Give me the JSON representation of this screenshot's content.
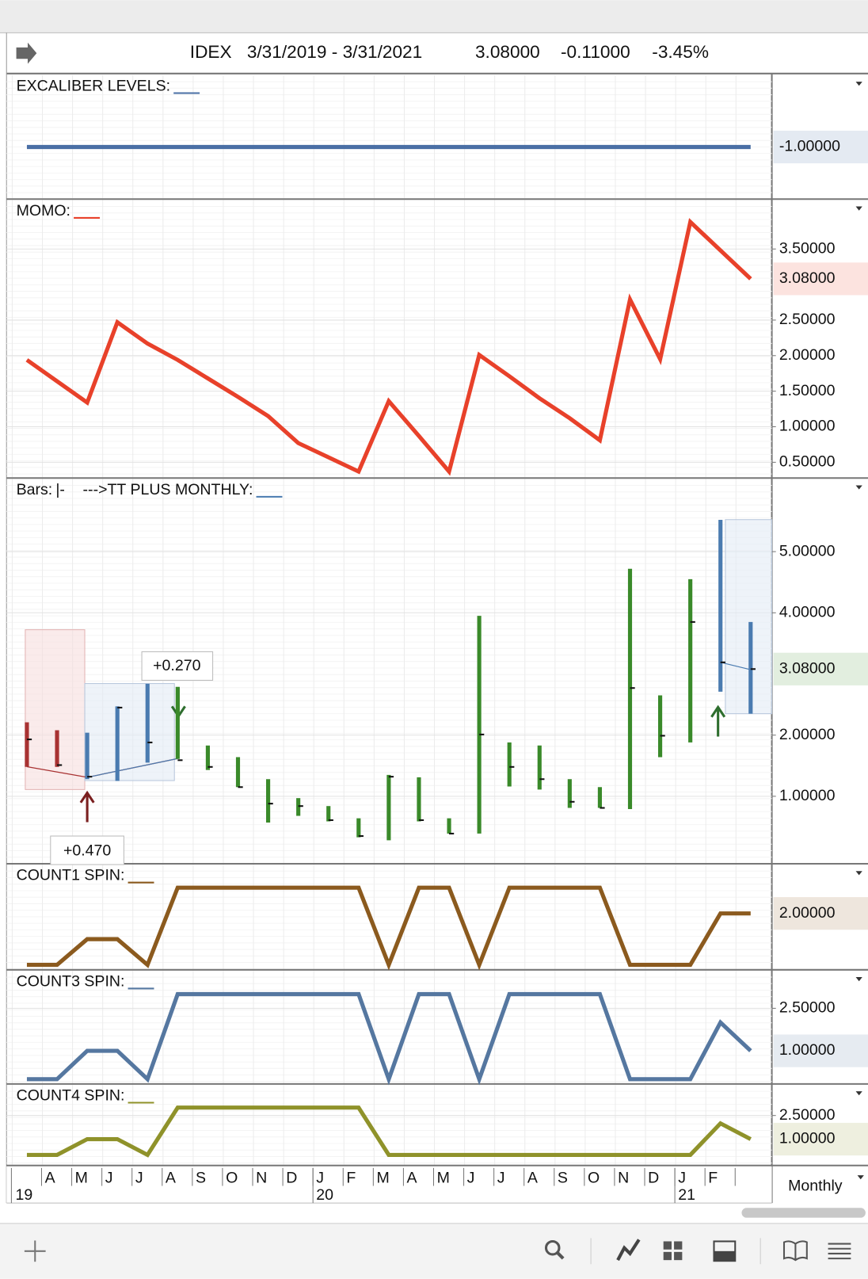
{
  "header": {
    "symbol": "IDEX",
    "range": "3/31/2019 - 3/31/2021",
    "last": "3.08000",
    "change": "-0.11000",
    "change_pct": "-3.45%"
  },
  "x_axis": {
    "categories": [
      null,
      "A",
      "M",
      "J",
      "J",
      "A",
      "S",
      "O",
      "N",
      "D",
      "J",
      "F",
      "M",
      "A",
      "M",
      "J",
      "J",
      "A",
      "S",
      "O",
      "N",
      "D",
      "J",
      "F",
      null
    ],
    "years": [
      "19",
      null,
      null,
      null,
      null,
      null,
      null,
      null,
      null,
      null,
      "20",
      null,
      null,
      null,
      null,
      null,
      null,
      null,
      null,
      null,
      null,
      null,
      "21",
      null,
      null
    ]
  },
  "period": "Monthly",
  "chart_data": [
    {
      "type": "line",
      "title": "EXCALIBER LEVELS:",
      "color": "#4a6fa5",
      "values": [
        -1,
        -1,
        -1,
        -1,
        -1,
        -1,
        -1,
        -1,
        -1,
        -1,
        -1,
        -1,
        -1,
        -1,
        -1,
        -1,
        -1,
        -1,
        -1,
        -1,
        -1,
        -1,
        -1,
        -1,
        -1
      ],
      "ylim": [
        -1.5,
        -0.3
      ],
      "yticks": [],
      "last_value_label": "-1.00000"
    },
    {
      "type": "line",
      "title": "MOMO:",
      "color": "#e8412a",
      "values": [
        1.94,
        1.64,
        1.34,
        2.47,
        2.17,
        1.94,
        1.68,
        1.42,
        1.15,
        0.77,
        0.57,
        0.37,
        1.36,
        0.87,
        0.37,
        2.01,
        1.71,
        1.4,
        1.12,
        0.81,
        2.79,
        1.95,
        3.88,
        3.48,
        3.08
      ],
      "ylim": [
        0.29,
        4.19
      ],
      "yticks": [
        {
          "value": 0.5,
          "label": "0.50000"
        },
        {
          "value": 1,
          "label": "1.00000"
        },
        {
          "value": 1.5,
          "label": "1.50000"
        },
        {
          "value": 2,
          "label": "2.00000"
        },
        {
          "value": 2.5,
          "label": "2.50000"
        },
        {
          "value": 3.5,
          "label": "3.50000"
        }
      ],
      "last_value_label": "3.08000"
    },
    {
      "type": "ohlc",
      "title": "Bars:",
      "style_label": "|-",
      "study": "--->TT PLUS MONTHLY:",
      "color": "#3a8a2a",
      "study_color": "#4a7bb0",
      "high": [
        2.21,
        2.08,
        2.04,
        2.47,
        2.84,
        2.79,
        1.83,
        1.64,
        1.28,
        0.97,
        0.84,
        0.64,
        1.35,
        1.31,
        0.64,
        3.95,
        1.88,
        1.83,
        1.28,
        1.15,
        4.72,
        2.65,
        4.55,
        5.52,
        3.85
      ],
      "low": [
        1.48,
        1.48,
        1.28,
        1.25,
        1.55,
        1.61,
        1.43,
        1.15,
        0.57,
        0.68,
        0.59,
        0.33,
        0.28,
        0.59,
        0.39,
        0.39,
        1.16,
        1.11,
        0.81,
        0.81,
        0.79,
        1.64,
        1.88,
        2.71,
        2.35
      ],
      "close": [
        1.93,
        1.51,
        1.32,
        2.45,
        1.88,
        1.59,
        1.48,
        1.15,
        0.88,
        0.84,
        0.61,
        0.35,
        1.32,
        0.61,
        0.39,
        2.01,
        1.48,
        1.28,
        0.91,
        0.81,
        2.77,
        1.99,
        3.85,
        3.19,
        3.08
      ],
      "colors": [
        "#a83232",
        "#a83232",
        "#4a7bb0",
        "#4a7bb0",
        "#4a7bb0",
        "#3a8a2a",
        "#3a8a2a",
        "#3a8a2a",
        "#3a8a2a",
        "#3a8a2a",
        "#3a8a2a",
        "#3a8a2a",
        "#3a8a2a",
        "#3a8a2a",
        "#3a8a2a",
        "#3a8a2a",
        "#3a8a2a",
        "#3a8a2a",
        "#3a8a2a",
        "#3a8a2a",
        "#3a8a2a",
        "#3a8a2a",
        "#3a8a2a",
        "#4a7bb0",
        "#4a7bb0"
      ],
      "ylim": [
        -0.09,
        6.19
      ],
      "yticks": [
        {
          "value": 1,
          "label": "1.00000"
        },
        {
          "value": 2,
          "label": "2.00000"
        },
        {
          "value": 4,
          "label": "4.00000"
        },
        {
          "value": 5,
          "label": "5.00000"
        }
      ],
      "annotations": [
        "+0.470",
        "+0.270"
      ],
      "last_value_label": "3.08000"
    },
    {
      "type": "line",
      "title": "COUNT1 SPIN:",
      "color": "#8b5a1e",
      "values": [
        0,
        0,
        1,
        1,
        0,
        3,
        3,
        3,
        3,
        3,
        3,
        3,
        0,
        3,
        3,
        0,
        3,
        3,
        3,
        3,
        0,
        0,
        0,
        2,
        2
      ],
      "ylim": [
        -0.16,
        3.9
      ],
      "yticks": [],
      "last_value_label": "2.00000"
    },
    {
      "type": "line",
      "title": "COUNT3 SPIN:",
      "color": "#5577a0",
      "values": [
        0,
        0,
        1,
        1,
        0,
        3,
        3,
        3,
        3,
        3,
        3,
        3,
        0,
        3,
        3,
        0,
        3,
        3,
        3,
        3,
        0,
        0,
        0,
        2,
        1
      ],
      "ylim": [
        -0.14,
        3.83
      ],
      "yticks": [
        {
          "value": 2.5,
          "label": "2.50000"
        }
      ],
      "last_value_label": "1.00000"
    },
    {
      "type": "line",
      "title": "COUNT4 SPIN:",
      "color": "#8f922a",
      "values": [
        0,
        0,
        1,
        1,
        0,
        3,
        3,
        3,
        3,
        3,
        3,
        3,
        0,
        0,
        0,
        0,
        0,
        0,
        0,
        0,
        0,
        0,
        0,
        2,
        1
      ],
      "ylim": [
        -0.62,
        4.45
      ],
      "yticks": [
        {
          "value": 2.5,
          "label": "2.50000"
        }
      ],
      "last_value_label": "1.00000"
    }
  ]
}
